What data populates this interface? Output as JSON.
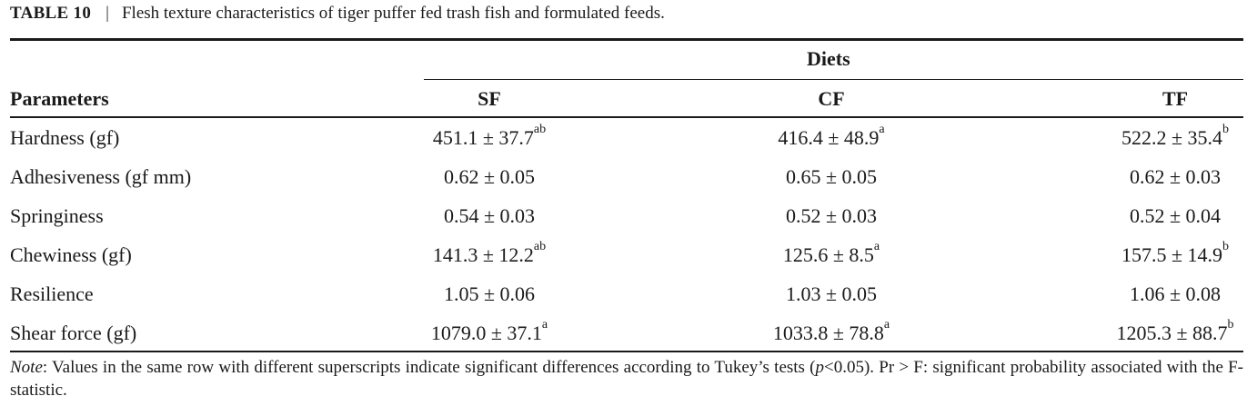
{
  "caption": {
    "tag": "TABLE 10",
    "separator": "|",
    "title": "Flesh texture characteristics of tiger puffer fed trash fish and formulated feeds."
  },
  "header": {
    "group_label": "Diets",
    "parameters_label": "Parameters",
    "columns": [
      "SF",
      "CF",
      "TF"
    ]
  },
  "rows": [
    {
      "param": "Hardness (gf)",
      "values": [
        {
          "v": "451.1 ± 37.7",
          "sup": "ab"
        },
        {
          "v": "416.4 ± 48.9",
          "sup": "a"
        },
        {
          "v": "522.2 ± 35.4",
          "sup": "b"
        }
      ]
    },
    {
      "param": "Adhesiveness (gf mm)",
      "values": [
        {
          "v": "0.62 ± 0.05",
          "sup": ""
        },
        {
          "v": "0.65 ± 0.05",
          "sup": ""
        },
        {
          "v": "0.62 ± 0.03",
          "sup": ""
        }
      ]
    },
    {
      "param": "Springiness",
      "values": [
        {
          "v": "0.54 ± 0.03",
          "sup": ""
        },
        {
          "v": "0.52 ± 0.03",
          "sup": ""
        },
        {
          "v": "0.52 ± 0.04",
          "sup": ""
        }
      ]
    },
    {
      "param": "Chewiness (gf)",
      "values": [
        {
          "v": "141.3 ± 12.2",
          "sup": "ab"
        },
        {
          "v": "125.6 ± 8.5",
          "sup": "a"
        },
        {
          "v": "157.5 ± 14.9",
          "sup": "b"
        }
      ]
    },
    {
      "param": "Resilience",
      "values": [
        {
          "v": "1.05 ± 0.06",
          "sup": ""
        },
        {
          "v": "1.03 ± 0.05",
          "sup": ""
        },
        {
          "v": "1.06 ± 0.08",
          "sup": ""
        }
      ]
    },
    {
      "param": "Shear force (gf)",
      "values": [
        {
          "v": "1079.0 ± 37.1",
          "sup": "a"
        },
        {
          "v": "1033.8 ± 78.8",
          "sup": "a"
        },
        {
          "v": "1205.3 ± 88.7",
          "sup": "b"
        }
      ]
    }
  ],
  "note": {
    "label": "Note",
    "text_before_p": ": Values in the same row with different superscripts indicate significant differences according to Tukey’s tests (",
    "p_symbol": "p",
    "text_after_p": "<0.05). Pr > F: significant probability associated with the F-statistic."
  }
}
